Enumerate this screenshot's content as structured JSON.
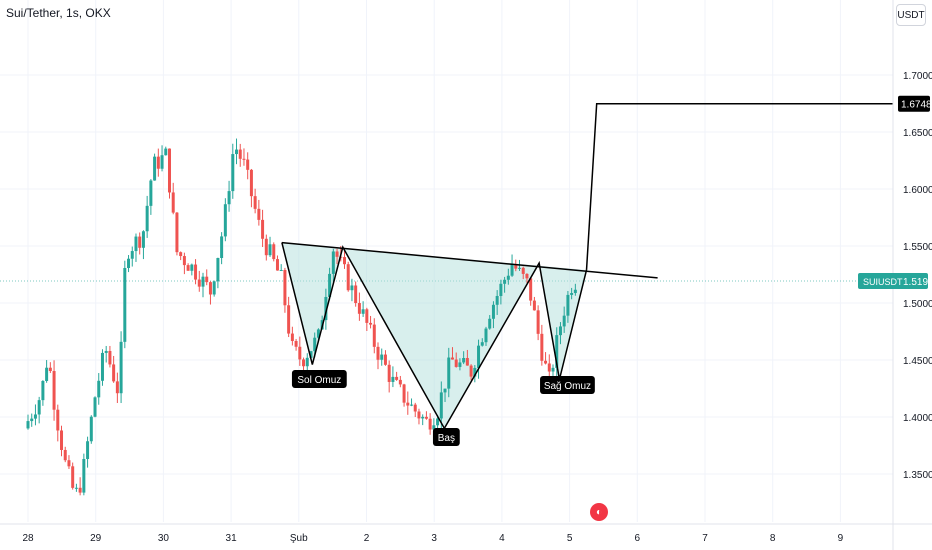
{
  "header": {
    "symbol_title": "Sui/Tether, 1s, OKX",
    "currency": "USDT"
  },
  "chart_data": {
    "type": "candlestick",
    "y_axis": {
      "ticks": [
        "1.7000",
        "1.6500",
        "1.6000",
        "1.5500",
        "1.5000",
        "1.4500",
        "1.4000",
        "1.3500"
      ],
      "range": [
        1.3,
        1.76
      ]
    },
    "x_axis": {
      "ticks": [
        "28",
        "29",
        "30",
        "31",
        "Şub",
        "2",
        "3",
        "4",
        "5",
        "6",
        "7",
        "8",
        "9"
      ]
    },
    "price_labels": [
      {
        "name": "target",
        "value": "1.6748",
        "bg": "#000000"
      },
      {
        "name": "SUIUSDT",
        "value": "1.5193",
        "bg": "#26a69a"
      }
    ],
    "current_price_line": 1.5193,
    "annotations": {
      "left_shoulder": "Sol Omuz",
      "head": "Baş",
      "right_shoulder": "Sağ Omuz"
    },
    "pattern": "inverse head and shoulders",
    "neckline": [
      [
        1.553,
        1.553
      ],
      [
        1.538,
        1.522
      ]
    ],
    "target": 1.6748,
    "colors": {
      "up": "#26a69a",
      "down": "#ef5350",
      "fill": "#b2dfdb",
      "line": "#000000",
      "grid": "#f0f3fa"
    },
    "grid": true,
    "legend": "none"
  }
}
